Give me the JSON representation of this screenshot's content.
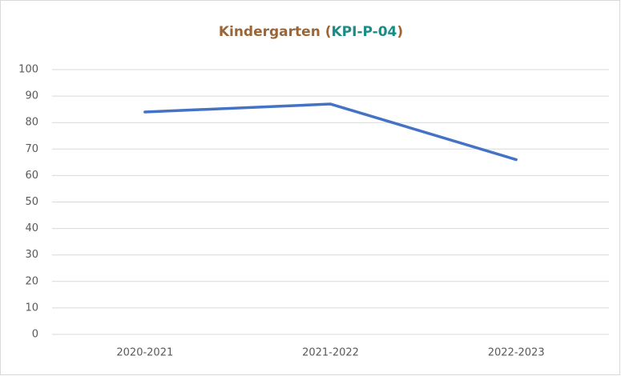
{
  "chart_data": {
    "type": "line",
    "title": [
      {
        "text": "Kindergarten (",
        "color": "#9c6536"
      },
      {
        "text": "KPI-P-04",
        "color": "#1b8c85"
      },
      {
        "text": ")",
        "color": "#9c6536"
      }
    ],
    "categories": [
      "2020-2021",
      "2021-2022",
      "2022-2023"
    ],
    "series": [
      {
        "name": "Kindergarten",
        "color": "#4472c4",
        "values": [
          84,
          87,
          66
        ]
      }
    ],
    "ylim": [
      0,
      100
    ],
    "yticks": [
      0,
      10,
      20,
      30,
      40,
      50,
      60,
      70,
      80,
      90,
      100
    ],
    "grid": true,
    "legend": false
  }
}
